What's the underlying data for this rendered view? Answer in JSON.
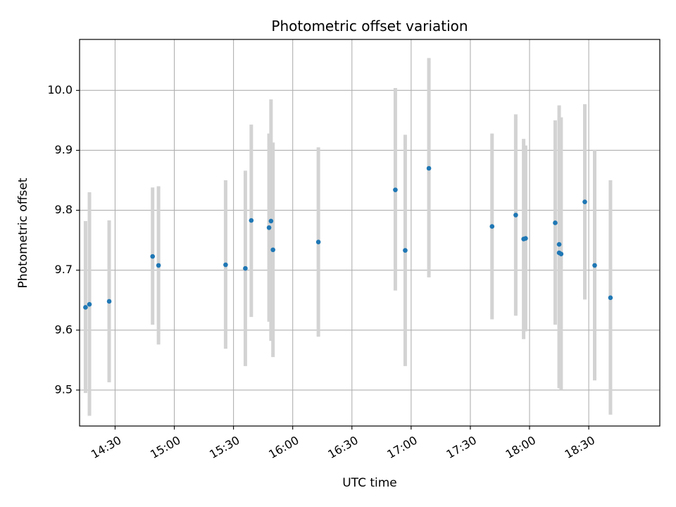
{
  "chart_data": {
    "type": "scatter",
    "title": "Photometric offset variation",
    "xlabel": "UTC time",
    "ylabel": "Photometric offset",
    "grid": true,
    "xlim": [
      "14:12",
      "19:06"
    ],
    "ylim": [
      9.44,
      10.085
    ],
    "x_ticks": [
      "14:30",
      "15:00",
      "15:30",
      "16:00",
      "16:30",
      "17:00",
      "17:30",
      "18:00",
      "18:30"
    ],
    "y_ticks": [
      "9.5",
      "9.6",
      "9.7",
      "9.8",
      "9.9",
      "10.0"
    ],
    "marker_color": "#1f77b4",
    "errorbar_color": "#d3d3d3",
    "points": [
      {
        "x": "14:15",
        "y": 9.638,
        "ylow": 9.495,
        "yhigh": 9.782
      },
      {
        "x": "14:17",
        "y": 9.643,
        "ylow": 9.457,
        "yhigh": 9.83
      },
      {
        "x": "14:27",
        "y": 9.648,
        "ylow": 9.513,
        "yhigh": 9.783
      },
      {
        "x": "14:49",
        "y": 9.723,
        "ylow": 9.609,
        "yhigh": 9.838
      },
      {
        "x": "14:52",
        "y": 9.708,
        "ylow": 9.576,
        "yhigh": 9.84
      },
      {
        "x": "15:26",
        "y": 9.709,
        "ylow": 9.569,
        "yhigh": 9.85
      },
      {
        "x": "15:36",
        "y": 9.703,
        "ylow": 9.54,
        "yhigh": 9.866
      },
      {
        "x": "15:39",
        "y": 9.783,
        "ylow": 9.622,
        "yhigh": 9.943
      },
      {
        "x": "15:48",
        "y": 9.771,
        "ylow": 9.614,
        "yhigh": 9.928
      },
      {
        "x": "15:49",
        "y": 9.782,
        "ylow": 9.582,
        "yhigh": 9.985
      },
      {
        "x": "15:50",
        "y": 9.734,
        "ylow": 9.555,
        "yhigh": 9.913
      },
      {
        "x": "16:13",
        "y": 9.747,
        "ylow": 9.589,
        "yhigh": 9.905
      },
      {
        "x": "16:52",
        "y": 9.834,
        "ylow": 9.666,
        "yhigh": 10.004
      },
      {
        "x": "16:57",
        "y": 9.733,
        "ylow": 9.54,
        "yhigh": 9.926
      },
      {
        "x": "17:09",
        "y": 9.87,
        "ylow": 9.688,
        "yhigh": 10.054
      },
      {
        "x": "17:41",
        "y": 9.773,
        "ylow": 9.618,
        "yhigh": 9.928
      },
      {
        "x": "17:53",
        "y": 9.792,
        "ylow": 9.624,
        "yhigh": 9.96
      },
      {
        "x": "17:57",
        "y": 9.752,
        "ylow": 9.585,
        "yhigh": 9.919
      },
      {
        "x": "17:58",
        "y": 9.753,
        "ylow": 9.598,
        "yhigh": 9.908
      },
      {
        "x": "18:13",
        "y": 9.779,
        "ylow": 9.609,
        "yhigh": 9.95
      },
      {
        "x": "18:15",
        "y": 9.743,
        "ylow": 9.51,
        "yhigh": 9.975
      },
      {
        "x": "18:15",
        "y": 9.729,
        "ylow": 9.503,
        "yhigh": 9.955
      },
      {
        "x": "18:16",
        "y": 9.727,
        "ylow": 9.5,
        "yhigh": 9.955
      },
      {
        "x": "18:28",
        "y": 9.814,
        "ylow": 9.651,
        "yhigh": 9.977
      },
      {
        "x": "18:33",
        "y": 9.708,
        "ylow": 9.516,
        "yhigh": 9.901
      },
      {
        "x": "18:41",
        "y": 9.654,
        "ylow": 9.459,
        "yhigh": 9.85
      }
    ]
  }
}
